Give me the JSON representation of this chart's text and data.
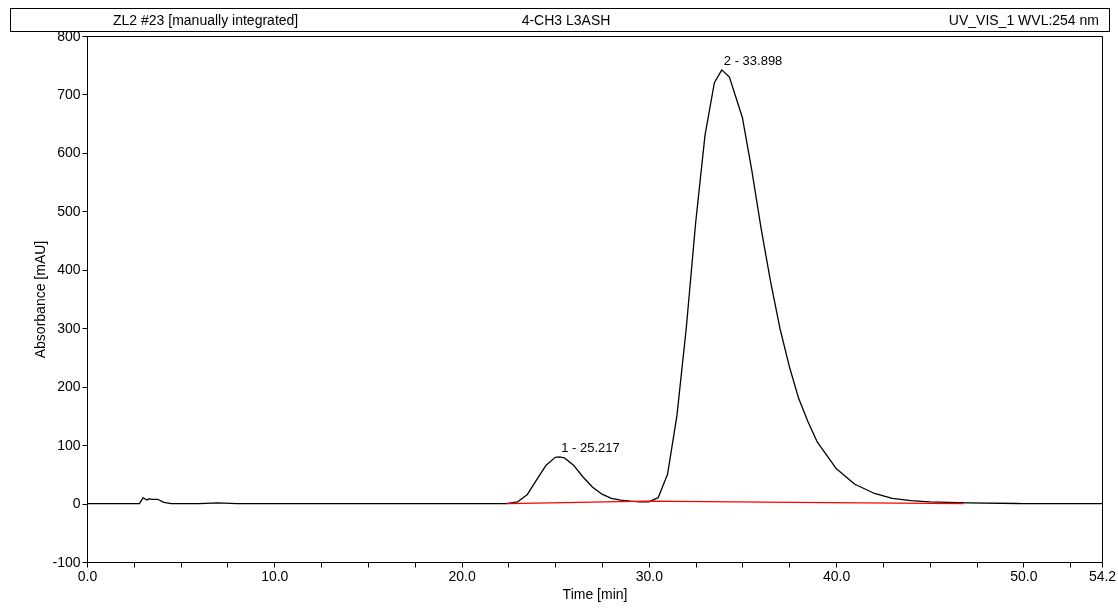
{
  "chart_data": {
    "type": "line",
    "title": "4-CH3 L3ASH",
    "subtitle": "ZL2 #23 [manually integrated]",
    "xlabel": "Time [min]",
    "ylabel": "Absorbance [mAU]",
    "annotations": [
      "UV_VIS_1 WVL:254 nm",
      {
        "text": "1 - 25.217",
        "x": 25.217,
        "y": 80
      },
      {
        "text": "2 - 33.898",
        "x": 33.898,
        "y": 742
      }
    ],
    "xlim": [
      0,
      54.2
    ],
    "ylim": [
      -100,
      800
    ],
    "xticks": [
      {
        "value": 0,
        "label": "0.0"
      },
      {
        "value": 2.5,
        "label": null
      },
      {
        "value": 5,
        "label": null
      },
      {
        "value": 7.5,
        "label": null
      },
      {
        "value": 10,
        "label": "10.0"
      },
      {
        "value": 12.5,
        "label": null
      },
      {
        "value": 15,
        "label": null
      },
      {
        "value": 17.5,
        "label": null
      },
      {
        "value": 20,
        "label": "20.0"
      },
      {
        "value": 22.5,
        "label": null
      },
      {
        "value": 25,
        "label": null
      },
      {
        "value": 27.5,
        "label": null
      },
      {
        "value": 30,
        "label": "30.0"
      },
      {
        "value": 32.5,
        "label": null
      },
      {
        "value": 35,
        "label": null
      },
      {
        "value": 37.5,
        "label": null
      },
      {
        "value": 40,
        "label": "40.0"
      },
      {
        "value": 42.5,
        "label": null
      },
      {
        "value": 45,
        "label": null
      },
      {
        "value": 47.5,
        "label": null
      },
      {
        "value": 50,
        "label": "50.0"
      },
      {
        "value": 52.5,
        "label": null
      },
      {
        "value": 54.2,
        "label": "54.2"
      }
    ],
    "yticks": [
      -100,
      0,
      100,
      200,
      300,
      400,
      500,
      600,
      700,
      800
    ],
    "grid": false,
    "legend": false,
    "marker": "none",
    "line_style": "solid",
    "series": [
      {
        "color": "#000000",
        "x": [
          0,
          2.8,
          3.0,
          3.2,
          3.3,
          3.5,
          3.8,
          4.1,
          4.5,
          6.0,
          7.0,
          8.0,
          12.0,
          22.4,
          23.0,
          23.5,
          24.0,
          24.5,
          25.0,
          25.217,
          25.5,
          26.0,
          26.5,
          27.0,
          27.5,
          28.0,
          28.5,
          29.0,
          29.5,
          30.0,
          30.5,
          31.0,
          31.5,
          32.0,
          32.5,
          33.0,
          33.5,
          33.898,
          34.3,
          35.0,
          35.5,
          36.0,
          36.5,
          37.0,
          37.5,
          38.0,
          38.5,
          39.0,
          40.0,
          41.0,
          42.0,
          43.0,
          44.0,
          45.0,
          46.0,
          47.0,
          50.0,
          54.2
        ],
        "values": [
          0,
          0,
          10,
          6,
          8,
          7,
          7,
          2,
          0,
          0,
          1,
          0,
          0,
          0,
          3,
          15,
          40,
          65,
          79,
          80,
          78,
          65,
          45,
          28,
          16,
          9,
          6,
          4,
          3,
          3,
          10,
          50,
          150,
          300,
          480,
          630,
          720,
          742,
          730,
          660,
          570,
          470,
          380,
          300,
          235,
          180,
          140,
          105,
          60,
          33,
          18,
          9,
          5,
          3,
          2,
          1,
          0,
          0
        ]
      },
      {
        "color": "#ff0000",
        "x": [
          22.4,
          29.9,
          46.8
        ],
        "values": [
          0,
          4,
          0
        ]
      }
    ]
  }
}
